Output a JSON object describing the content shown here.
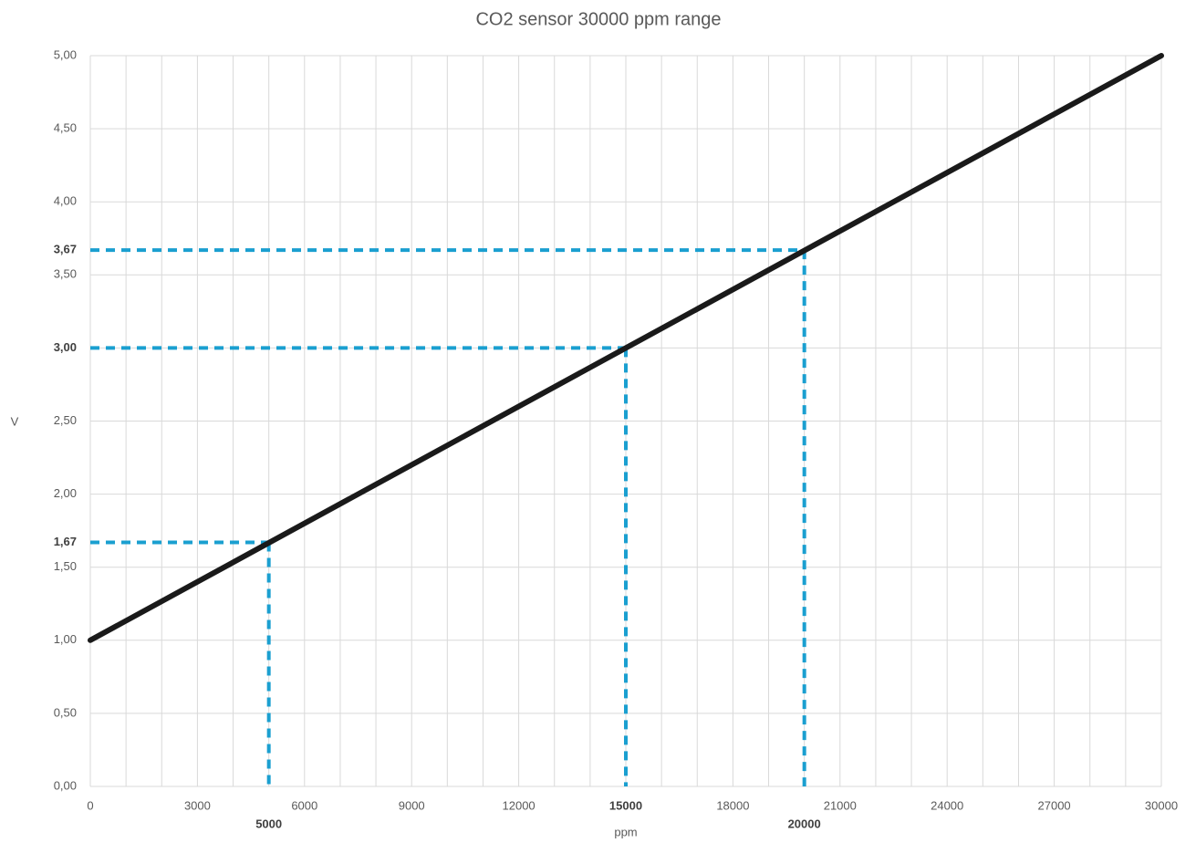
{
  "chart_data": {
    "type": "line",
    "title": "CO2 sensor 30000 ppm range",
    "x_label": "ppm",
    "y_label": "V",
    "x": [
      0,
      30000
    ],
    "series": [
      {
        "color": "#1a1a1a",
        "values": [
          1,
          5
        ]
      }
    ],
    "xlim": [
      0,
      30000
    ],
    "ylim": [
      0,
      5
    ],
    "xticks": [
      0,
      3000,
      6000,
      9000,
      12000,
      18000,
      21000,
      24000,
      27000,
      30000
    ],
    "yticks": [
      {
        "value": 0,
        "label": "0,00"
      },
      {
        "value": 0.5,
        "label": "0,50"
      },
      {
        "value": 1,
        "label": "1,00"
      },
      {
        "value": 1.5,
        "label": "1,50"
      },
      {
        "value": 2,
        "label": "2,00"
      },
      {
        "value": 2.5,
        "label": "2,50"
      },
      {
        "value": 3.5,
        "label": "3,50"
      },
      {
        "value": 4,
        "label": "4,00"
      },
      {
        "value": 4.5,
        "label": "4,50"
      },
      {
        "value": 5,
        "label": "5,00"
      }
    ],
    "xgrid": [
      0,
      1000,
      2000,
      3000,
      4000,
      5000,
      6000,
      7000,
      8000,
      9000,
      10000,
      11000,
      12000,
      13000,
      14000,
      15000,
      16000,
      17000,
      18000,
      19000,
      20000,
      21000,
      22000,
      23000,
      24000,
      25000,
      26000,
      27000,
      28000,
      29000,
      30000
    ],
    "ygrid": [
      0,
      0.5,
      1,
      1.5,
      2,
      2.5,
      3,
      3.5,
      4,
      4.5,
      5
    ],
    "reference_points": {
      "color": "#1a9fd0",
      "x": [
        5000,
        15000,
        20000
      ],
      "y": [
        1.67,
        3,
        3.67
      ],
      "y_labels": [
        "1,67",
        "3,00",
        "3,67"
      ]
    }
  }
}
